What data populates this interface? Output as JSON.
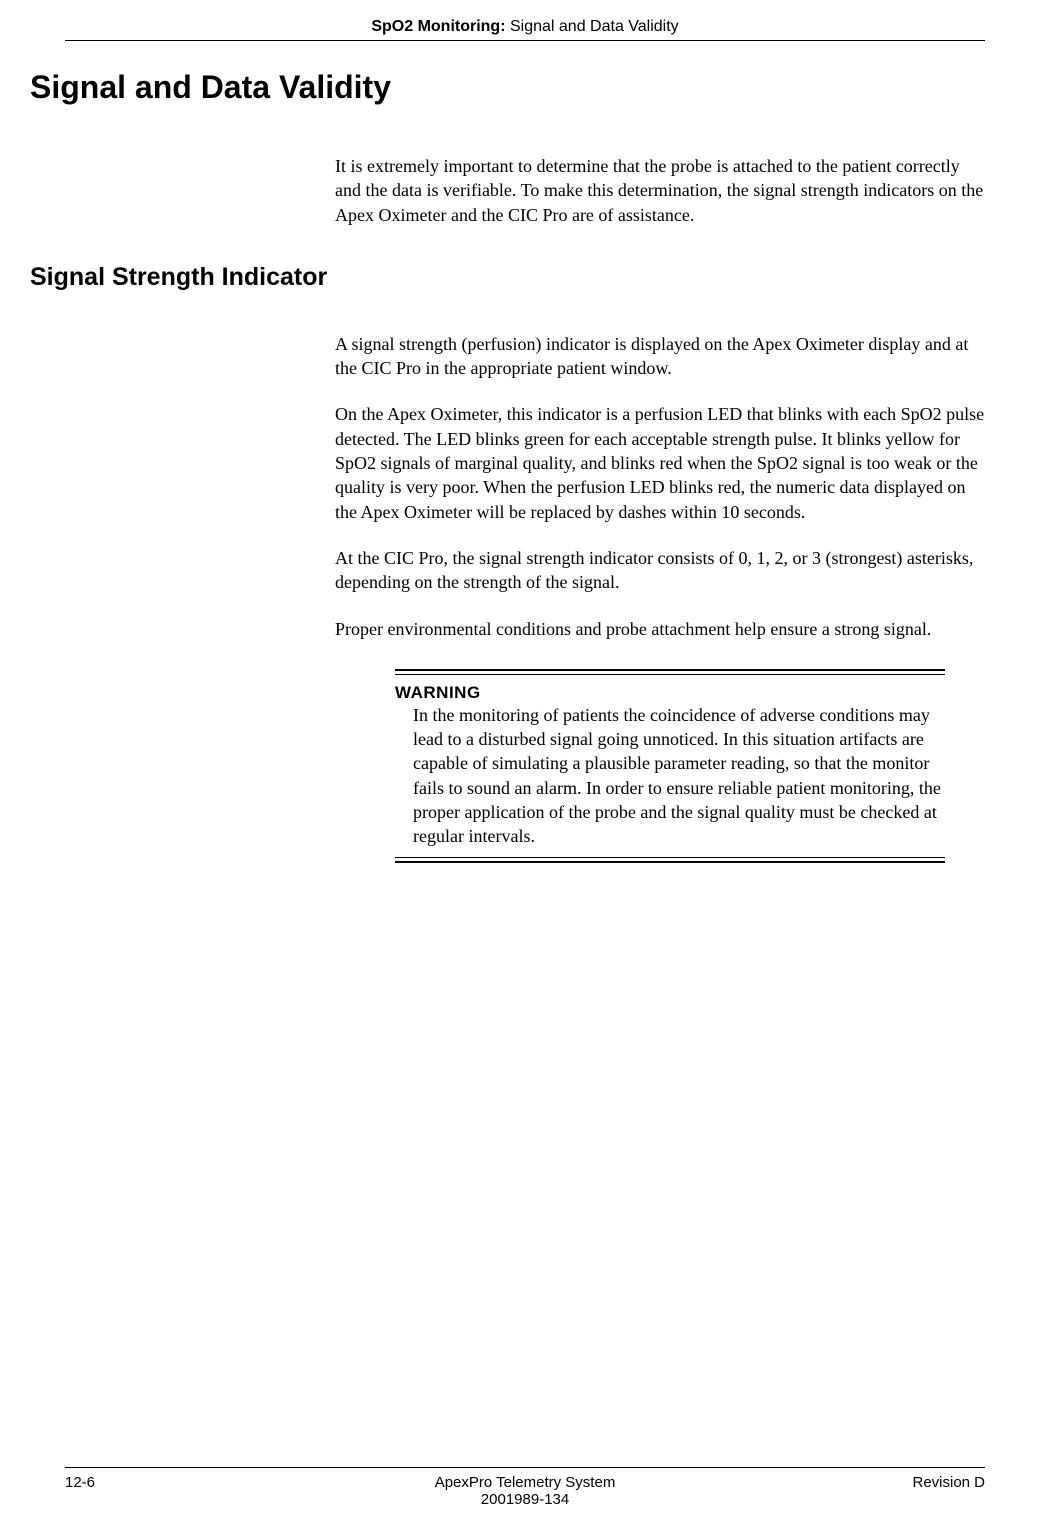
{
  "header": {
    "bold_part": "SpO2 Monitoring:",
    "normal_part": " Signal and Data Validity"
  },
  "main_heading": "Signal and Data Validity",
  "intro_paragraph": "It is extremely important to determine that the probe is attached to the patient correctly and the data is verifiable. To make this determination, the signal strength indicators on the Apex Oximeter and the CIC Pro are of assistance.",
  "sub_heading": "Signal Strength Indicator",
  "para1": "A signal strength (perfusion) indicator is displayed on the Apex Oximeter display and at the CIC Pro in the appropriate patient window.",
  "para2": "On the Apex Oximeter, this indicator is a perfusion LED that blinks with each SpO2 pulse detected. The LED blinks green for each acceptable strength pulse. It blinks yellow for SpO2 signals of marginal quality, and blinks red when the SpO2 signal is too weak or the quality is very poor. When the perfusion LED blinks red, the numeric data displayed on the Apex Oximeter will be replaced by dashes within 10 seconds.",
  "para3": "At the CIC Pro, the signal strength indicator consists of 0, 1, 2, or 3 (strongest) asterisks, depending on the strength of the signal.",
  "para4": "Proper environmental conditions and probe attachment help ensure a strong signal.",
  "warning": {
    "label": "WARNING",
    "text": "In the monitoring of patients the coincidence of adverse conditions may lead to a disturbed signal going unnoticed. In this situation artifacts are capable of simulating a plausible parameter reading, so that the monitor fails to sound an alarm. In order to ensure reliable patient monitoring, the proper application of the probe and the signal quality must be checked at regular intervals."
  },
  "footer": {
    "page": "12-6",
    "center1": "ApexPro Telemetry System",
    "center2": "2001989-134",
    "revision": "Revision D"
  }
}
